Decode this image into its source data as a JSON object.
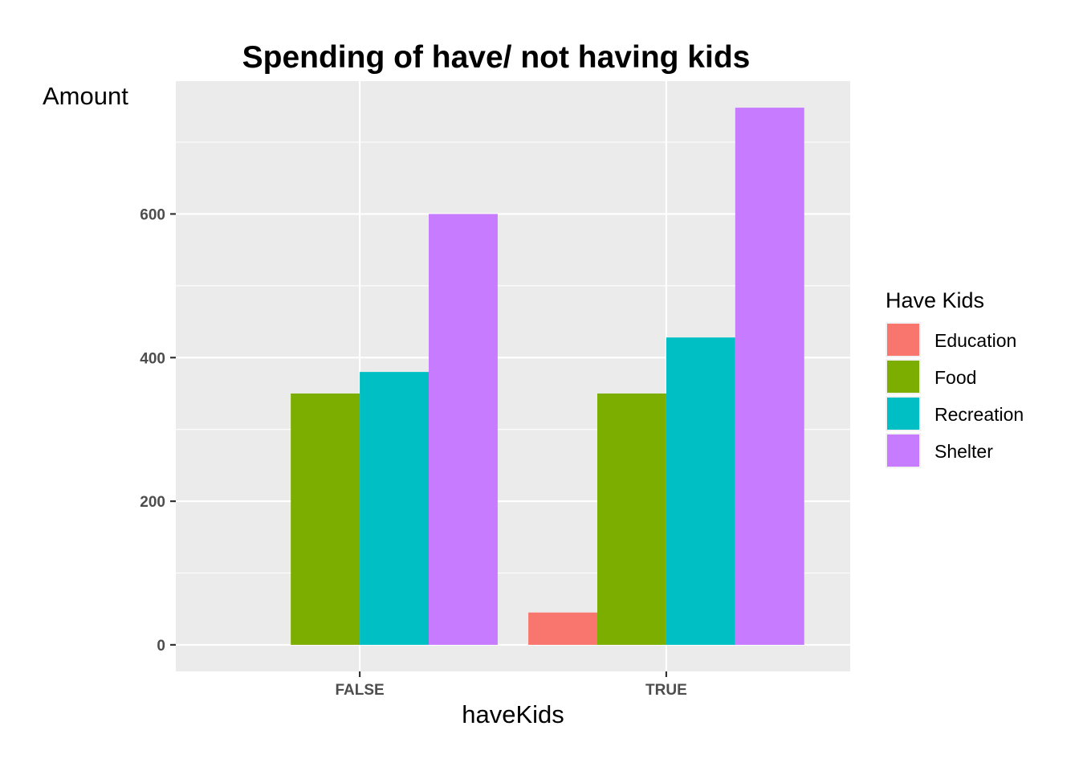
{
  "chart_data": {
    "type": "bar",
    "title": "Spending of have/ not having kids",
    "xlabel": "haveKids",
    "ylabel": "Amount",
    "categories": [
      "FALSE",
      "TRUE"
    ],
    "series": [
      {
        "name": "Education",
        "values": [
          0,
          45
        ],
        "color": "#F8766D"
      },
      {
        "name": "Food",
        "values": [
          350,
          350
        ],
        "color": "#7CAE00"
      },
      {
        "name": "Recreation",
        "values": [
          380,
          428
        ],
        "color": "#00BFC4"
      },
      {
        "name": "Shelter",
        "values": [
          600,
          748
        ],
        "color": "#C77CFF"
      }
    ],
    "ylim": [
      -37,
      785
    ],
    "yticks": [
      0,
      200,
      400,
      600
    ],
    "grid": true,
    "legend": {
      "title": "Have Kids",
      "placement": "right"
    },
    "panel_background": "#EBEBEB",
    "grid_color": "#FFFFFF"
  }
}
